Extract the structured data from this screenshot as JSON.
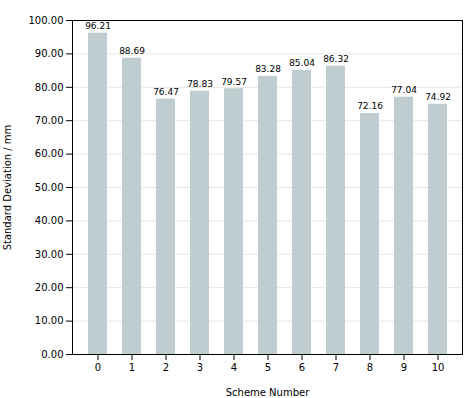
{
  "chart_data": {
    "type": "bar",
    "categories": [
      "0",
      "1",
      "2",
      "3",
      "4",
      "5",
      "6",
      "7",
      "8",
      "9",
      "10"
    ],
    "values": [
      96.21,
      88.69,
      76.47,
      78.83,
      79.57,
      83.28,
      85.04,
      86.32,
      72.16,
      77.04,
      74.92
    ],
    "color": "#bfcdd1",
    "xlabel": "Scheme Number",
    "ylabel": "Standard Deviation / mm",
    "ylim": [
      0,
      100
    ],
    "yticks": [
      {
        "value": 0,
        "label": "0.00"
      },
      {
        "value": 10,
        "label": "10.00"
      },
      {
        "value": 20,
        "label": "20.00"
      },
      {
        "value": 30,
        "label": "30.00"
      },
      {
        "value": 40,
        "label": "40.00"
      },
      {
        "value": 50,
        "label": "50.00"
      },
      {
        "value": 60,
        "label": "60.00"
      },
      {
        "value": 70,
        "label": "70.00"
      },
      {
        "value": 80,
        "label": "80.00"
      },
      {
        "value": 90,
        "label": "90.00"
      },
      {
        "value": 100,
        "label": "100.00"
      }
    ],
    "grid": true,
    "data_labels": true
  }
}
